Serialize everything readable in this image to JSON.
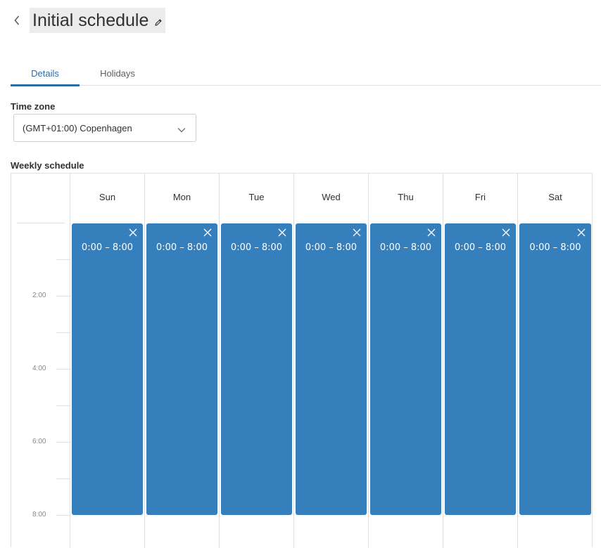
{
  "header": {
    "back_icon": "chevron-left-icon",
    "title": "Initial schedule",
    "edit_icon": "pencil-icon"
  },
  "tabs": [
    {
      "label": "Details",
      "active": true
    },
    {
      "label": "Holidays",
      "active": false
    }
  ],
  "timezone": {
    "label": "Time zone",
    "value": "(GMT+01:00) Copenhagen",
    "chevron_icon": "chevron-down-icon"
  },
  "weekly_schedule": {
    "label": "Weekly schedule",
    "time_labels": [
      "2:00",
      "4:00",
      "6:00",
      "8:00"
    ],
    "days": [
      {
        "name": "Sun",
        "block": "0:00 – 8:00"
      },
      {
        "name": "Mon",
        "block": "0:00 – 8:00"
      },
      {
        "name": "Tue",
        "block": "0:00 – 8:00"
      },
      {
        "name": "Wed",
        "block": "0:00 – 8:00"
      },
      {
        "name": "Thu",
        "block": "0:00 – 8:00"
      },
      {
        "name": "Fri",
        "block": "0:00 – 8:00"
      },
      {
        "name": "Sat",
        "block": "0:00 – 8:00"
      }
    ],
    "block_color": "#367fbd",
    "accent_color": "#2b6ca8"
  }
}
